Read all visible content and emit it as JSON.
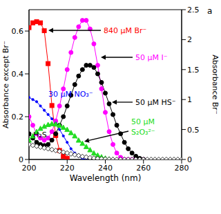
{
  "chart_data": {
    "type": "line",
    "title": "a",
    "x_label": "Wavelength (nm)",
    "y_label": "Absorbance except Br⁻",
    "y2_label": "Absorbance Br⁻",
    "x": [
      200,
      202,
      204,
      206,
      208,
      210,
      212,
      214,
      216,
      218,
      220,
      222,
      224,
      226,
      228,
      230,
      232,
      234,
      236,
      238,
      240,
      242,
      244,
      246,
      248,
      250,
      252,
      254,
      256,
      258,
      260,
      262,
      264,
      266,
      268,
      270,
      272,
      274,
      276,
      278,
      280
    ],
    "xlim": [
      200,
      280
    ],
    "xticks": [
      200,
      220,
      240,
      260,
      280
    ],
    "ylim": [
      0,
      0.7
    ],
    "yticks": [
      0,
      0.2,
      0.4,
      0.6
    ],
    "y2lim": [
      0,
      2.5
    ],
    "y2ticks": [
      0,
      0.5,
      1,
      1.5,
      2,
      2.5
    ],
    "series": [
      {
        "name": "840 µM Br⁻",
        "color": "#ff0000",
        "marker": "square",
        "axis": "y2",
        "values": [
          2.2,
          2.28,
          2.3,
          2.28,
          2.15,
          1.6,
          0.9,
          0.4,
          0.15,
          0.05,
          0.02,
          null,
          null,
          null,
          null,
          null,
          null,
          null,
          null,
          null,
          null,
          null,
          null,
          null,
          null,
          null,
          null,
          null,
          null,
          null,
          null,
          null,
          null,
          null,
          null,
          null,
          null,
          null,
          null,
          null,
          null
        ]
      },
      {
        "name": "50 µM I⁻",
        "color": "#ff00ff",
        "marker": "circle",
        "values": [
          0.2,
          0.16,
          0.12,
          0.1,
          0.09,
          0.1,
          0.13,
          0.18,
          0.25,
          0.33,
          0.42,
          0.5,
          0.57,
          0.62,
          0.65,
          0.65,
          0.61,
          0.54,
          0.44,
          0.33,
          0.22,
          0.13,
          0.07,
          0.03,
          0.01,
          0,
          0,
          0,
          0,
          0,
          0,
          null,
          null,
          null,
          null,
          null,
          null,
          null,
          null,
          null,
          null
        ]
      },
      {
        "name": "50 µM HS⁻",
        "color": "#000000",
        "marker": "circle",
        "values": [
          0.12,
          0.1,
          0.08,
          0.07,
          0.065,
          0.07,
          0.09,
          0.12,
          0.16,
          0.2,
          0.25,
          0.3,
          0.35,
          0.39,
          0.42,
          0.44,
          0.44,
          0.43,
          0.4,
          0.36,
          0.31,
          0.26,
          0.21,
          0.16,
          0.12,
          0.08,
          0.05,
          0.03,
          0.015,
          0.005,
          0,
          null,
          null,
          null,
          null,
          null,
          null,
          null,
          null,
          null,
          null
        ]
      },
      {
        "name": "30 µM NO₃⁻",
        "color": "#0000ff",
        "marker": "dot",
        "values": [
          0.29,
          0.28,
          0.27,
          0.25,
          0.23,
          0.21,
          0.19,
          0.17,
          0.14,
          0.11,
          0.08,
          0.05,
          0.03,
          0.015,
          0.005,
          0,
          null,
          null,
          null,
          null,
          null,
          null,
          null,
          null,
          null,
          null,
          null,
          null,
          null,
          null,
          null,
          null,
          null,
          null,
          null,
          null,
          null,
          null,
          null,
          null,
          null
        ]
      },
      {
        "name": "50 µM S₂O₃²⁻",
        "color": "#22dd22",
        "marker": "triangle",
        "values": [
          0.09,
          0.11,
          0.13,
          0.145,
          0.155,
          0.163,
          0.167,
          0.165,
          0.16,
          0.15,
          0.14,
          0.125,
          0.11,
          0.09,
          0.075,
          0.06,
          0.045,
          0.03,
          0.02,
          0.012,
          0.006,
          0.002,
          0,
          null,
          null,
          null,
          null,
          null,
          null,
          null,
          null,
          null,
          null,
          null,
          null,
          null,
          null,
          null,
          null,
          null,
          null
        ]
      },
      {
        "name": "H₂S",
        "color": "#000000",
        "marker": "open_diamond",
        "values": [
          0.07,
          0.066,
          0.062,
          0.058,
          0.054,
          0.05,
          0.046,
          0.042,
          0.038,
          0.034,
          0.03,
          0.026,
          0.022,
          0.018,
          0.014,
          0.011,
          0.008,
          0.006,
          0.004,
          0.003,
          0.002,
          0.001,
          0,
          0,
          0,
          0,
          0,
          0,
          0,
          0,
          0,
          0,
          0,
          0,
          0,
          0,
          0,
          0,
          0,
          0,
          0
        ]
      }
    ]
  }
}
